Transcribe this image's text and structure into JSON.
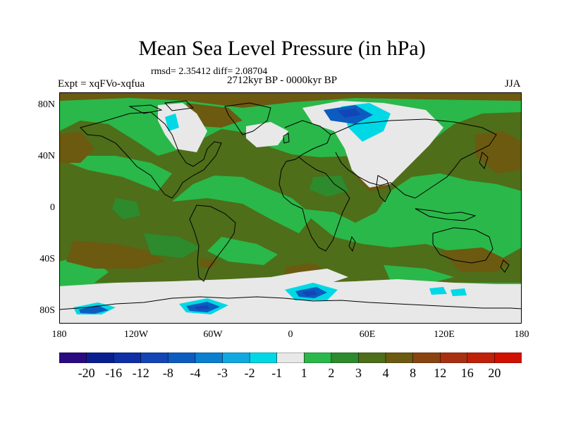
{
  "title": "Mean Sea Level Pressure (in hPa)",
  "stats": "rmsd= 2.35412 diff= 2.08704",
  "experiment": "Expt = xqFVo-xqfua",
  "period": "2712kyr BP - 0000kyr BP",
  "season": "JJA",
  "lat_ticks": [
    "80N",
    "40N",
    "0",
    "40S",
    "80S"
  ],
  "lon_ticks": [
    "180",
    "120W",
    "60W",
    "0",
    "60E",
    "120E",
    "180"
  ],
  "colorbar": {
    "labels": [
      "-20",
      "-16",
      "-12",
      "-8",
      "-4",
      "-3",
      "-2",
      "-1",
      "1",
      "2",
      "3",
      "4",
      "8",
      "12",
      "16",
      "20"
    ],
    "colors": [
      "#2a0a80",
      "#0a1f8f",
      "#0e2fa5",
      "#1245b5",
      "#0c5cc0",
      "#0b7fd0",
      "#10a8e0",
      "#00d8e6",
      "#e8e8e8",
      "#2ab84a",
      "#2d8a2d",
      "#4e6e1a",
      "#6b5a10",
      "#8a4410",
      "#a83010",
      "#c02008",
      "#d01000"
    ]
  },
  "colors": {
    "land_bg": "#4e6e1a",
    "light_green": "#2ab84a",
    "mid_green": "#2d8a2d",
    "brown": "#6b5a10",
    "neutral": "#e8e8e8",
    "cyan": "#00d8e6",
    "blue": "#0c5cc0",
    "dark_blue": "#1245b5",
    "coast": "#000000"
  }
}
